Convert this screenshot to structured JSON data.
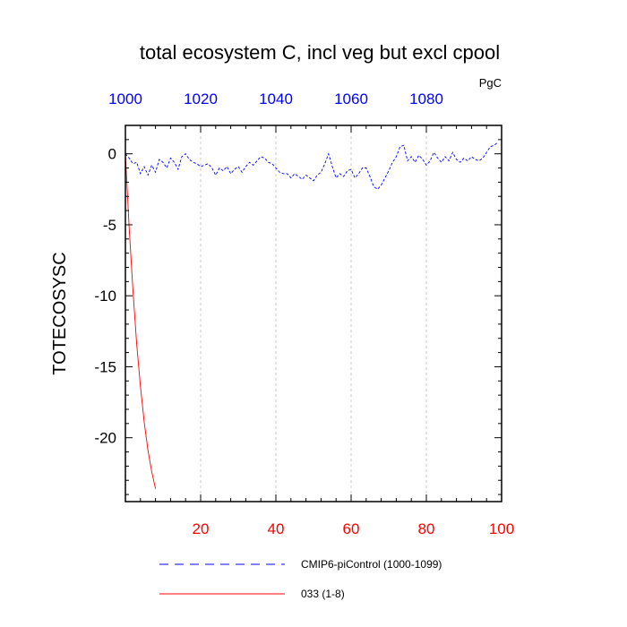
{
  "chart_data": {
    "type": "line",
    "title": "total ecosystem C, incl veg but excl cpool",
    "units": "PgC",
    "ylabel": "TOTECOSYSC",
    "xlabel": "",
    "ylim": [
      -24.5,
      2
    ],
    "y_ticks": [
      0,
      -5,
      -10,
      -15,
      -20
    ],
    "bottom_axis": {
      "xlim": [
        0,
        100
      ],
      "ticks": [
        20,
        40,
        60,
        80,
        100
      ],
      "color": "#ff0000"
    },
    "top_axis": {
      "xlim": [
        1000,
        1100
      ],
      "ticks": [
        1000,
        1020,
        1040,
        1060,
        1080
      ],
      "color": "#0000ff"
    },
    "grid": "vertical dashed",
    "legend_position": "bottom",
    "series": [
      {
        "name": "CMIP6-piControl (1000-1099)",
        "axis": "top",
        "style": "dashed",
        "color": "#0000ff",
        "x": [
          1000,
          1001,
          1002,
          1003,
          1004,
          1005,
          1006,
          1007,
          1008,
          1009,
          1010,
          1011,
          1012,
          1013,
          1014,
          1015,
          1016,
          1017,
          1018,
          1019,
          1020,
          1021,
          1022,
          1023,
          1024,
          1025,
          1026,
          1027,
          1028,
          1029,
          1030,
          1031,
          1032,
          1033,
          1034,
          1035,
          1036,
          1037,
          1038,
          1039,
          1040,
          1041,
          1042,
          1043,
          1044,
          1045,
          1046,
          1047,
          1048,
          1049,
          1050,
          1051,
          1052,
          1053,
          1054,
          1055,
          1056,
          1057,
          1058,
          1059,
          1060,
          1061,
          1062,
          1063,
          1064,
          1065,
          1066,
          1067,
          1068,
          1069,
          1070,
          1071,
          1072,
          1073,
          1074,
          1075,
          1076,
          1077,
          1078,
          1079,
          1080,
          1081,
          1082,
          1083,
          1084,
          1085,
          1086,
          1087,
          1088,
          1089,
          1090,
          1091,
          1092,
          1093,
          1094,
          1095,
          1096,
          1097,
          1098,
          1099
        ],
        "y": [
          0.0,
          -0.3,
          -0.7,
          -0.6,
          -1.4,
          -0.9,
          -1.5,
          -0.8,
          -1.3,
          -0.4,
          -0.6,
          -1.0,
          -0.3,
          -0.6,
          -1.1,
          -0.2,
          0.0,
          -0.4,
          -0.6,
          -0.7,
          -0.9,
          -0.8,
          -0.7,
          -1.0,
          -1.5,
          -1.0,
          -1.2,
          -0.9,
          -1.4,
          -1.1,
          -0.9,
          -1.3,
          -0.9,
          -0.6,
          -0.8,
          -0.5,
          -0.2,
          -0.3,
          -0.6,
          -0.7,
          -1.0,
          -1.3,
          -1.4,
          -1.4,
          -1.7,
          -1.4,
          -1.6,
          -1.8,
          -1.5,
          -1.7,
          -1.9,
          -1.5,
          -1.3,
          -0.7,
          0.0,
          -0.9,
          -1.7,
          -1.4,
          -1.6,
          -1.2,
          -1.1,
          -1.7,
          -1.4,
          -1.0,
          -1.0,
          -1.6,
          -2.3,
          -2.5,
          -2.2,
          -1.7,
          -1.2,
          -0.6,
          -0.2,
          0.5,
          0.6,
          -0.5,
          -0.2,
          -0.6,
          -0.1,
          -0.4,
          -0.8,
          -0.5,
          0.1,
          -0.3,
          -0.6,
          -0.2,
          -0.5,
          0.1,
          -0.4,
          -0.6,
          -0.3,
          -0.5,
          -0.2,
          -0.4,
          -0.5,
          -0.3,
          0.1,
          0.5,
          0.6,
          0.8
        ]
      },
      {
        "name": "033 (1-8)",
        "axis": "bottom",
        "style": "solid",
        "color": "#ff0000",
        "x": [
          0,
          1,
          2,
          3,
          4,
          5,
          6,
          7,
          8
        ],
        "y": [
          0,
          -5.2,
          -9.6,
          -13.4,
          -16.4,
          -18.9,
          -20.9,
          -22.4,
          -23.6
        ]
      }
    ]
  }
}
